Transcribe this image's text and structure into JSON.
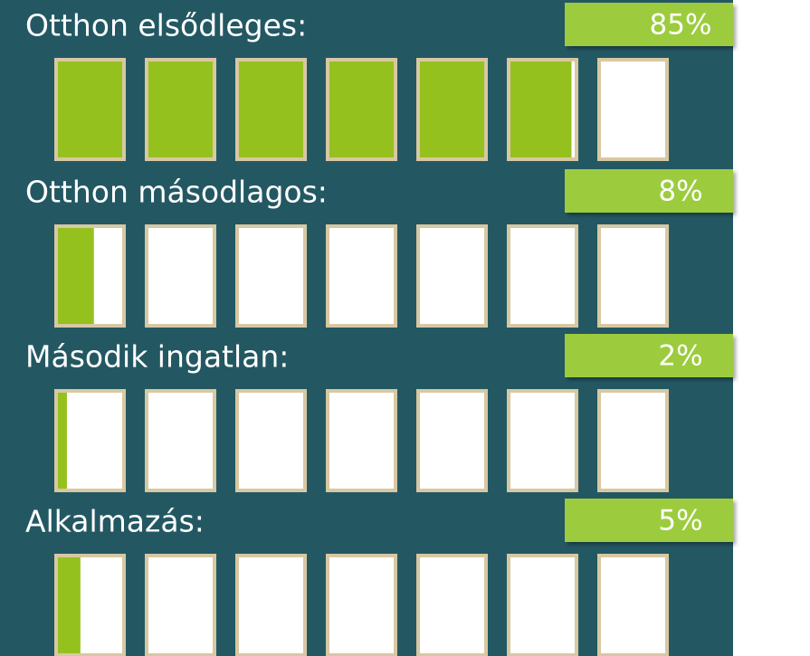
{
  "chart_data": {
    "type": "pictogram",
    "categories": [
      "Otthon elsődleges:",
      "Otthon másodlagos:",
      "Második ingatlan:",
      "Alkalmazás:"
    ],
    "values": [
      85,
      8,
      2,
      5
    ],
    "value_labels": [
      "85%",
      "8%",
      "2%",
      "5%"
    ],
    "color": "#95c11f",
    "xlim": [
      0,
      100
    ]
  }
}
